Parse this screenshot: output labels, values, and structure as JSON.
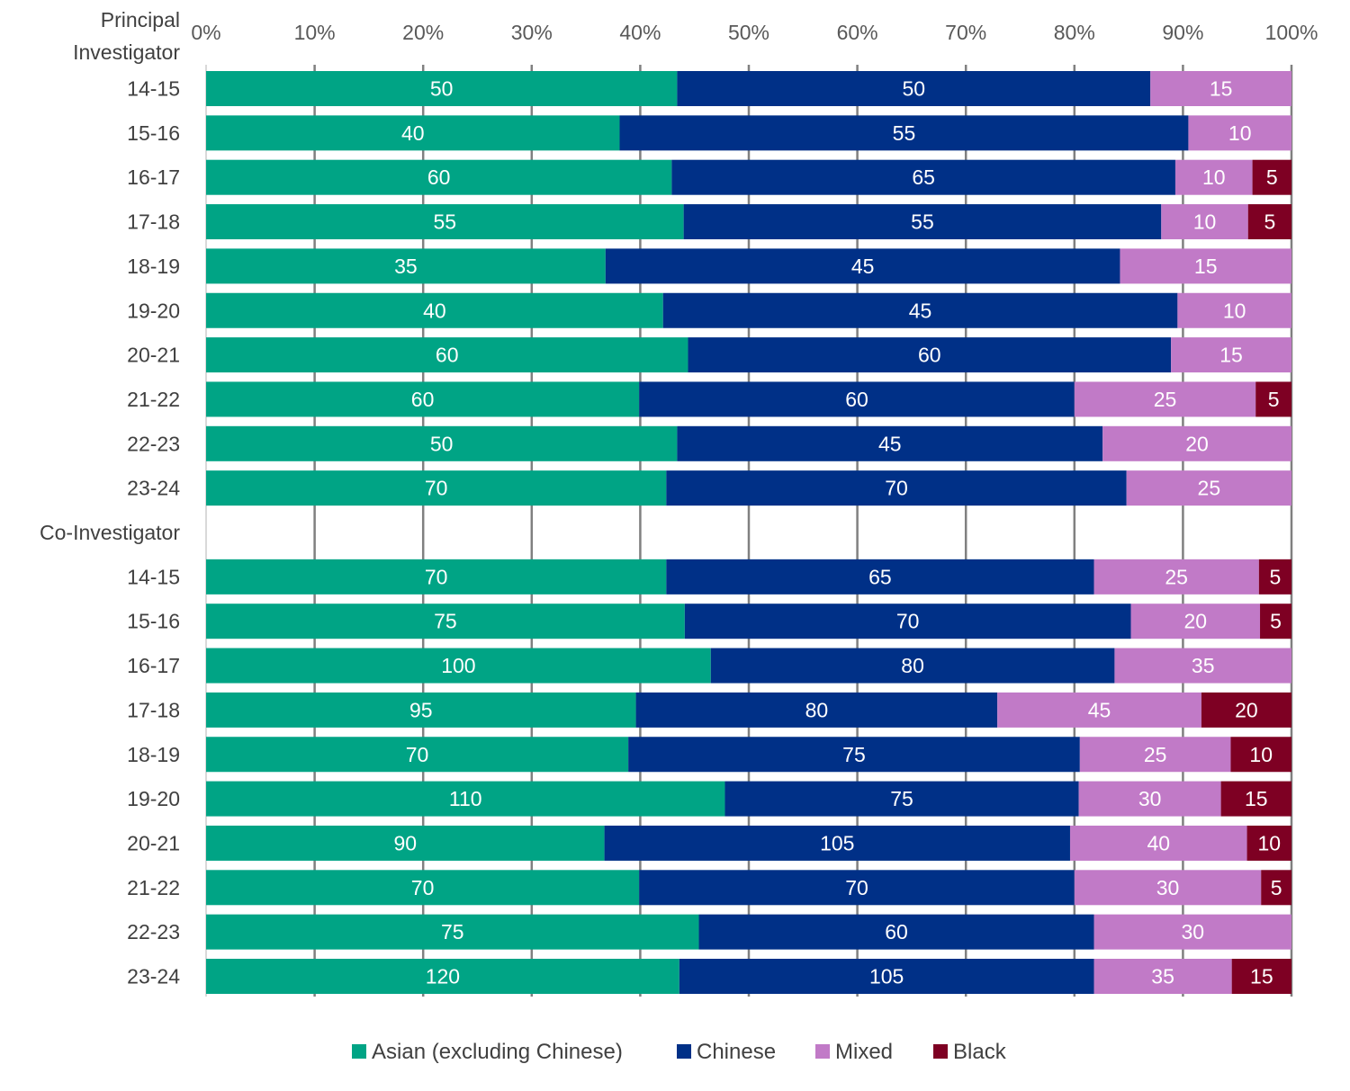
{
  "chart_data": {
    "type": "bar",
    "orientation": "horizontal",
    "stacked": "percent",
    "title": "",
    "xlabel": "",
    "ylabel": "",
    "xlim": [
      0,
      100
    ],
    "x_ticks": [
      "0%",
      "10%",
      "20%",
      "30%",
      "40%",
      "50%",
      "60%",
      "70%",
      "80%",
      "90%",
      "100%"
    ],
    "x_axis_position": "top",
    "grid": true,
    "legend_position": "bottom",
    "series": [
      {
        "name": "Asian (excluding Chinese)",
        "color": "#00A485"
      },
      {
        "name": "Chinese",
        "color": "#003087"
      },
      {
        "name": "Mixed",
        "color": "#C17AC7"
      },
      {
        "name": "Black",
        "color": "#7E0023"
      }
    ],
    "groups": [
      {
        "name": "Principal Investigator",
        "name_lines": [
          "Principal",
          "Investigator"
        ],
        "rows": [
          {
            "category": "14-15",
            "counts": [
              50,
              50,
              15,
              null
            ],
            "percent": [
              43.4,
              43.6,
              13.0,
              0
            ]
          },
          {
            "category": "15-16",
            "counts": [
              40,
              55,
              10,
              null
            ],
            "percent": [
              38.1,
              52.4,
              9.5,
              0
            ]
          },
          {
            "category": "16-17",
            "counts": [
              60,
              65,
              10,
              5
            ],
            "percent": [
              42.9,
              46.4,
              7.1,
              3.6
            ]
          },
          {
            "category": "17-18",
            "counts": [
              55,
              55,
              10,
              5
            ],
            "percent": [
              44.0,
              44.0,
              8.0,
              4.0
            ]
          },
          {
            "category": "18-19",
            "counts": [
              35,
              45,
              15,
              null
            ],
            "percent": [
              36.8,
              47.4,
              15.8,
              0
            ]
          },
          {
            "category": "19-20",
            "counts": [
              40,
              45,
              10,
              null
            ],
            "percent": [
              42.1,
              47.4,
              10.5,
              0
            ]
          },
          {
            "category": "20-21",
            "counts": [
              60,
              60,
              15,
              null
            ],
            "percent": [
              44.4,
              44.5,
              11.1,
              0
            ]
          },
          {
            "category": "21-22",
            "counts": [
              60,
              60,
              25,
              5
            ],
            "percent": [
              39.9,
              40.1,
              16.7,
              3.3
            ]
          },
          {
            "category": "22-23",
            "counts": [
              50,
              45,
              20,
              null
            ],
            "percent": [
              43.4,
              39.2,
              17.4,
              0
            ]
          },
          {
            "category": "23-24",
            "counts": [
              70,
              70,
              25,
              null
            ],
            "percent": [
              42.4,
              42.4,
              15.2,
              0
            ]
          }
        ]
      },
      {
        "name": "Co-Investigator",
        "name_lines": [
          "Co-Investigator"
        ],
        "rows": [
          {
            "category": "14-15",
            "counts": [
              70,
              65,
              25,
              5
            ],
            "percent": [
              42.4,
              39.4,
              15.2,
              3.0
            ]
          },
          {
            "category": "15-16",
            "counts": [
              75,
              70,
              20,
              5
            ],
            "percent": [
              44.1,
              41.1,
              11.9,
              2.9
            ]
          },
          {
            "category": "16-17",
            "counts": [
              100,
              80,
              35,
              null
            ],
            "percent": [
              46.5,
              37.2,
              16.3,
              0
            ]
          },
          {
            "category": "17-18",
            "counts": [
              95,
              80,
              45,
              20
            ],
            "percent": [
              39.6,
              33.3,
              18.8,
              8.3
            ]
          },
          {
            "category": "18-19",
            "counts": [
              70,
              75,
              25,
              10
            ],
            "percent": [
              38.9,
              41.6,
              13.9,
              5.6
            ]
          },
          {
            "category": "19-20",
            "counts": [
              110,
              75,
              30,
              15
            ],
            "percent": [
              47.8,
              32.6,
              13.1,
              6.5
            ]
          },
          {
            "category": "20-21",
            "counts": [
              90,
              105,
              40,
              10
            ],
            "percent": [
              36.7,
              42.9,
              16.3,
              4.1
            ]
          },
          {
            "category": "21-22",
            "counts": [
              70,
              70,
              30,
              5
            ],
            "percent": [
              39.9,
              40.1,
              17.2,
              2.8
            ]
          },
          {
            "category": "22-23",
            "counts": [
              75,
              60,
              30,
              null
            ],
            "percent": [
              45.4,
              36.4,
              18.2,
              0
            ]
          },
          {
            "category": "23-24",
            "counts": [
              120,
              105,
              35,
              15
            ],
            "percent": [
              43.6,
              38.2,
              12.7,
              5.5
            ]
          }
        ]
      }
    ]
  }
}
